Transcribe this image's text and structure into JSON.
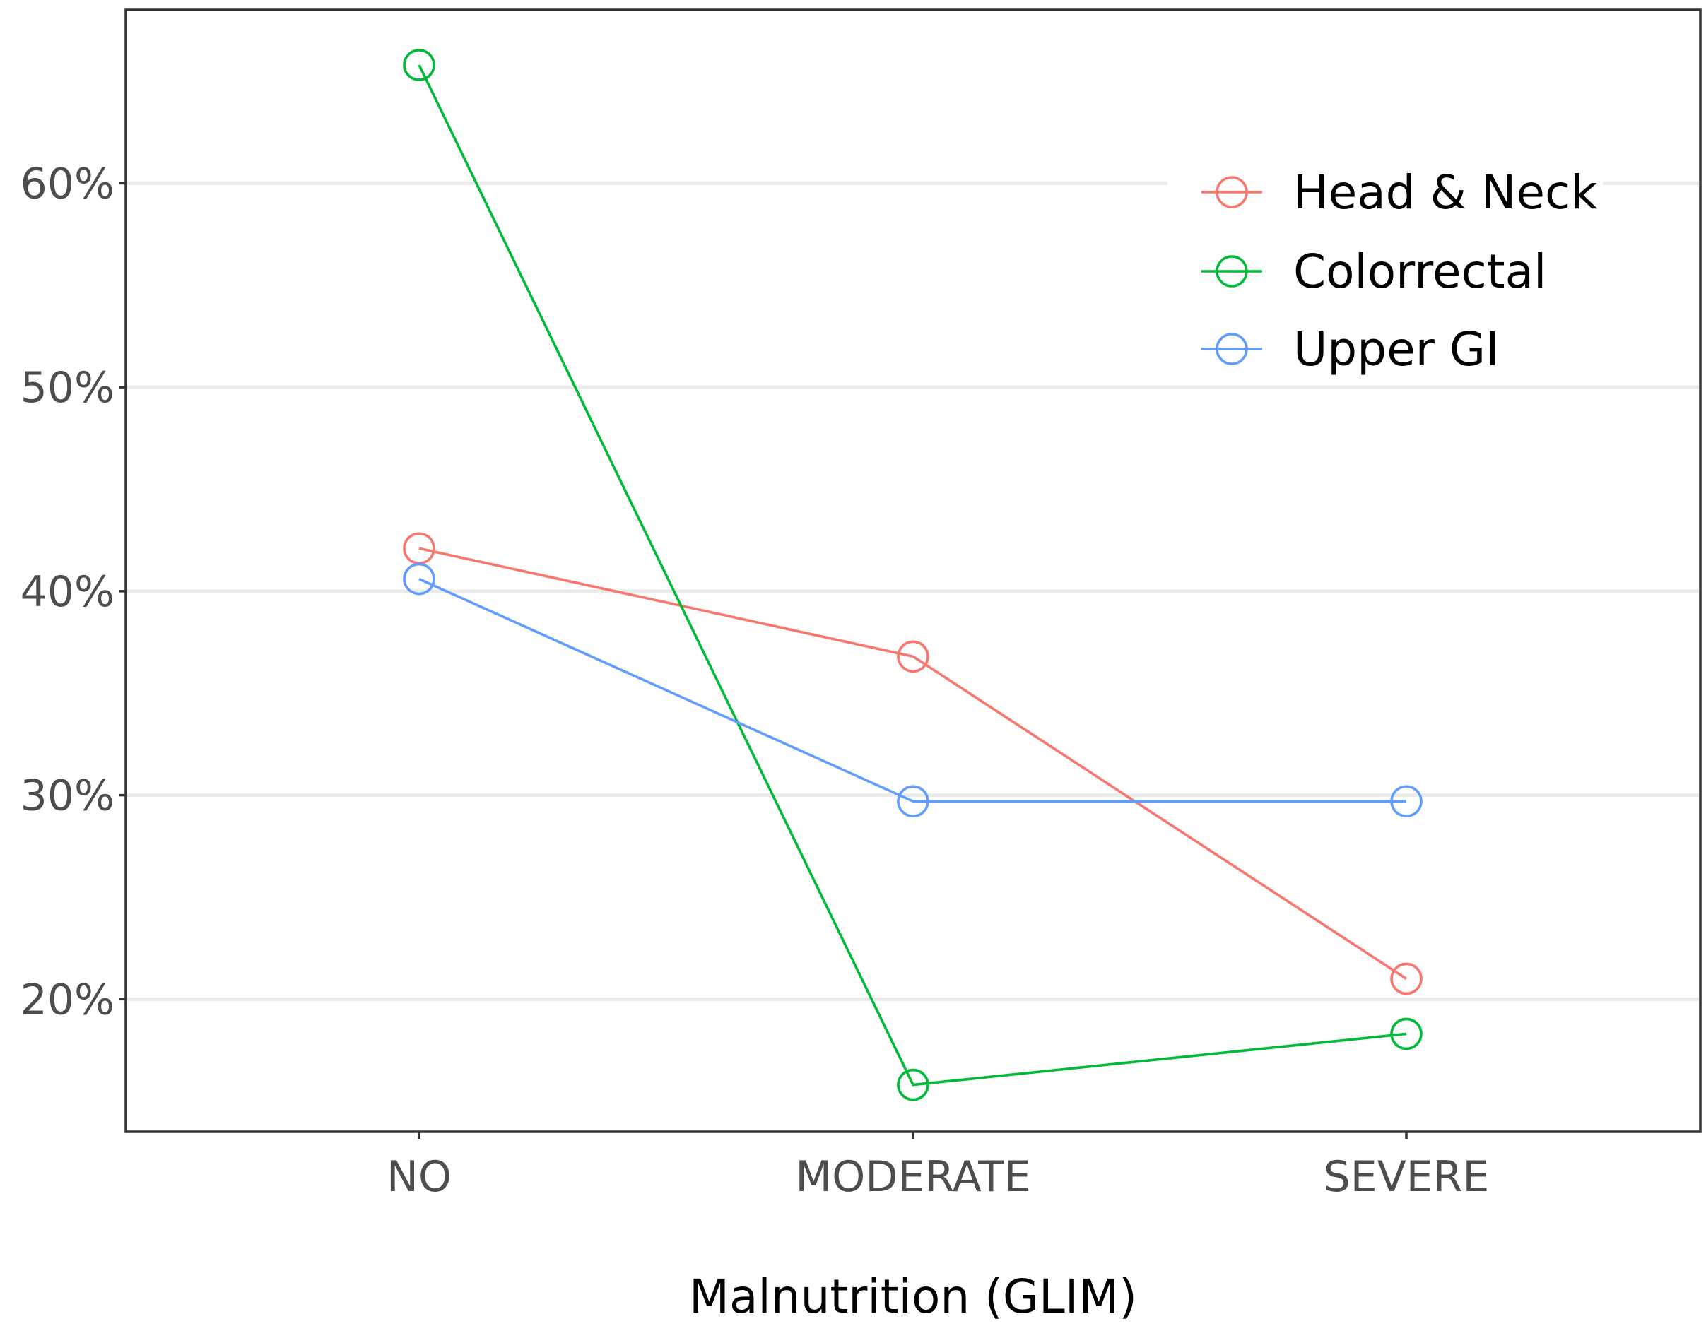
{
  "chart_data": {
    "type": "line",
    "title": "",
    "xlabel": "Malnutrition (GLIM)",
    "ylabel": "",
    "categories": [
      "NO",
      "MODERATE",
      "SEVERE"
    ],
    "ylim": [
      13.5,
      68.5
    ],
    "yticks": [
      20,
      30,
      40,
      50,
      60
    ],
    "ytick_labels": [
      "20%",
      "30%",
      "40%",
      "50%",
      "60%"
    ],
    "grid": true,
    "legend_position": "top-right",
    "series": [
      {
        "name": "Head & Neck",
        "color": "#F8766D",
        "values": [
          42.1,
          36.8,
          21.0
        ]
      },
      {
        "name": "Colorrectal",
        "color": "#00BA38",
        "values": [
          65.8,
          15.8,
          18.3
        ]
      },
      {
        "name": "Upper GI",
        "color": "#619CFF",
        "values": [
          40.6,
          29.7,
          29.7
        ]
      }
    ]
  }
}
